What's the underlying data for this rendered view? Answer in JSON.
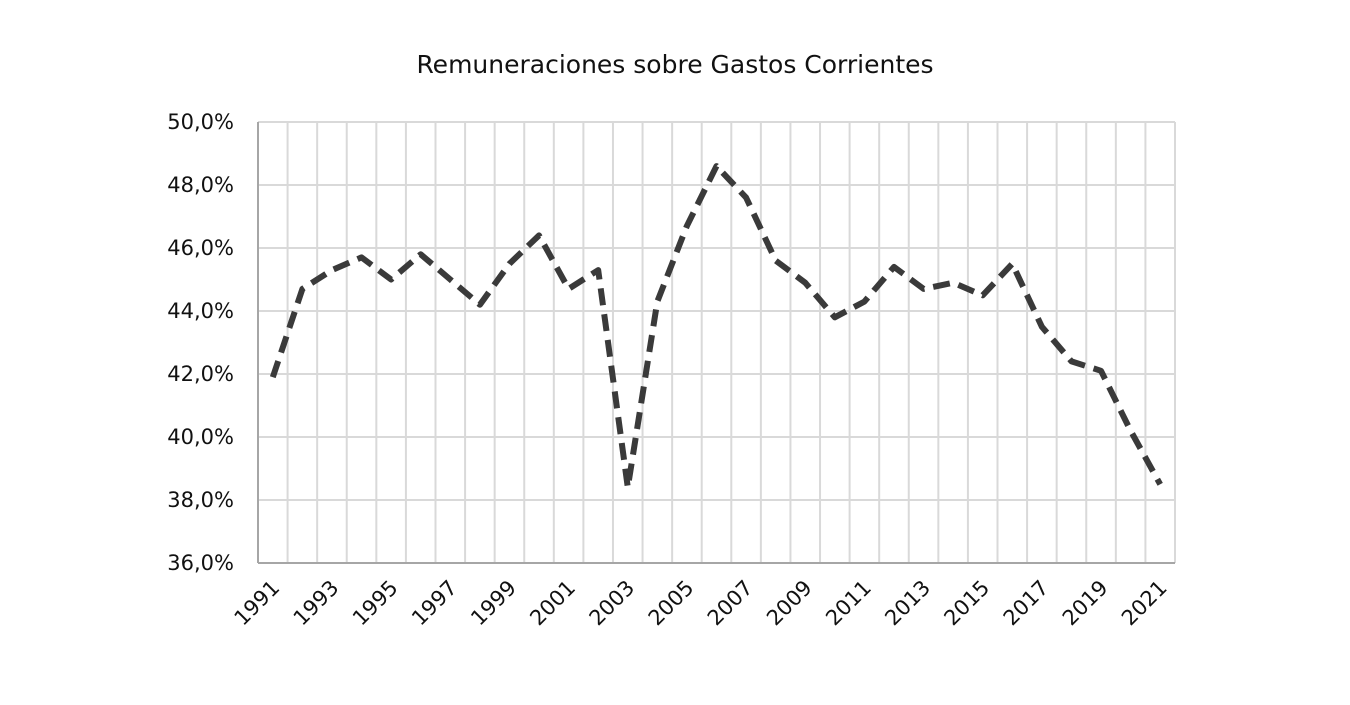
{
  "chart_data": {
    "type": "line",
    "title": "Remuneraciones sobre Gastos Corrientes",
    "xlabel": "",
    "ylabel": "",
    "x": [
      1991,
      1992,
      1993,
      1994,
      1995,
      1996,
      1997,
      1998,
      1999,
      2000,
      2001,
      2002,
      2003,
      2004,
      2005,
      2006,
      2007,
      2008,
      2009,
      2010,
      2011,
      2012,
      2013,
      2014,
      2015,
      2016,
      2017,
      2018,
      2019,
      2020,
      2021
    ],
    "x_tick_labels": [
      "1991",
      "1993",
      "1995",
      "1997",
      "1999",
      "2001",
      "2003",
      "2005",
      "2007",
      "2009",
      "2011",
      "2013",
      "2015",
      "2017",
      "2019",
      "2021"
    ],
    "y_tick_labels": [
      "36,0%",
      "38,0%",
      "40,0%",
      "42,0%",
      "44,0%",
      "46,0%",
      "48,0%",
      "50,0%"
    ],
    "ylim": [
      36,
      50
    ],
    "y_unit": "%",
    "grid": true,
    "series": [
      {
        "line_style": "dashed",
        "color": "#3a3a3a",
        "values": [
          41.9,
          44.7,
          45.3,
          45.7,
          45.0,
          45.8,
          45.0,
          44.2,
          45.5,
          46.4,
          44.7,
          45.3,
          38.4,
          44.3,
          46.7,
          48.6,
          47.6,
          45.6,
          44.9,
          43.8,
          44.3,
          45.4,
          44.7,
          44.9,
          44.5,
          45.5,
          43.5,
          42.4,
          42.1,
          40.2,
          38.5
        ]
      }
    ],
    "colors": {
      "grid": "#d9d9d9",
      "axis": "#a6a6a6",
      "line": "#3a3a3a"
    }
  }
}
